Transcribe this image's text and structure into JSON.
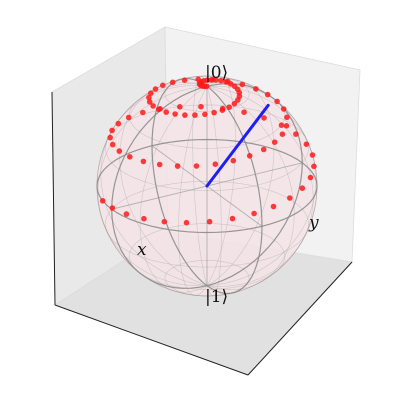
{
  "labels": {
    "north": "|0⟩",
    "south": "|1⟩",
    "x_axis": "x",
    "y_axis": "y"
  },
  "colors": {
    "trajectory": "#ff1a1a",
    "state_vector": "#1f1ff5",
    "sphere_fill": "#f3e3e6",
    "pane_light": "#f2f2f2",
    "pane_mid": "#e9e9e9",
    "pane_dark": "#e1e1e1",
    "wire": "#8c8c8c",
    "axis_line": "#222222"
  },
  "bloch": {
    "vector": {
      "theta_deg": 60,
      "phi_deg": 200
    },
    "trajectory": {
      "description_free": true,
      "points": 90
    }
  }
}
